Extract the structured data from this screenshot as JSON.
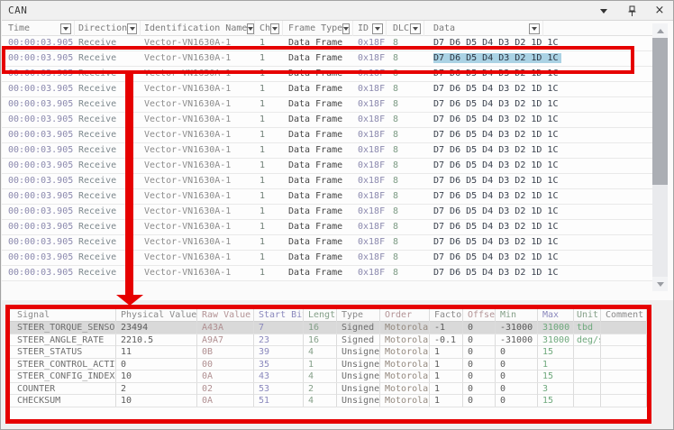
{
  "window": {
    "title": "CAN",
    "controls": [
      {
        "name": "menu-down",
        "glyph": "triangle-down"
      },
      {
        "name": "pin",
        "glyph": "pushpin"
      },
      {
        "name": "close",
        "glyph": "x"
      }
    ]
  },
  "message_table": {
    "columns": [
      {
        "label": "Time",
        "filter": true
      },
      {
        "label": "Direction",
        "filter": true
      },
      {
        "label": "Identification Name",
        "filter": true
      },
      {
        "label": "Ch",
        "filter": true
      },
      {
        "label": "Frame Type",
        "filter": true
      },
      {
        "label": "ID",
        "filter": true
      },
      {
        "label": "DLC",
        "filter": true
      },
      {
        "label": "Data",
        "filter": true
      }
    ],
    "column_colors": [
      "#8b89ae",
      "#7d888d",
      "#8c8c8c",
      "#6f7f76",
      "#464646",
      "#8b89ae",
      "#7d9b84",
      "#3a414d"
    ],
    "highlighted_row_index": 1,
    "highlight_color": "#aad2e4",
    "rows": [
      [
        "00:00:03.905",
        "Receive",
        "Vector-VN1630A-1",
        "1",
        "Data Frame",
        "0x18F",
        "8",
        "D7 D6 D5 D4 D3 D2 1D 1C"
      ],
      [
        "00:00:03.905",
        "Receive",
        "Vector-VN1630A-1",
        "1",
        "Data Frame",
        "0x18F",
        "8",
        "D7 D6 D5 D4 D3 D2 1D 1C"
      ],
      [
        "00:00:03.905",
        "Receive",
        "Vector-VN1630A-1",
        "1",
        "Data Frame",
        "0x18F",
        "8",
        "D7 D6 D5 D4 D3 D2 1D 1C"
      ],
      [
        "00:00:03.905",
        "Receive",
        "Vector-VN1630A-1",
        "1",
        "Data Frame",
        "0x18F",
        "8",
        "D7 D6 D5 D4 D3 D2 1D 1C"
      ],
      [
        "00:00:03.905",
        "Receive",
        "Vector-VN1630A-1",
        "1",
        "Data Frame",
        "0x18F",
        "8",
        "D7 D6 D5 D4 D3 D2 1D 1C"
      ],
      [
        "00:00:03.905",
        "Receive",
        "Vector-VN1630A-1",
        "1",
        "Data Frame",
        "0x18F",
        "8",
        "D7 D6 D5 D4 D3 D2 1D 1C"
      ],
      [
        "00:00:03.905",
        "Receive",
        "Vector-VN1630A-1",
        "1",
        "Data Frame",
        "0x18F",
        "8",
        "D7 D6 D5 D4 D3 D2 1D 1C"
      ],
      [
        "00:00:03.905",
        "Receive",
        "Vector-VN1630A-1",
        "1",
        "Data Frame",
        "0x18F",
        "8",
        "D7 D6 D5 D4 D3 D2 1D 1C"
      ],
      [
        "00:00:03.905",
        "Receive",
        "Vector-VN1630A-1",
        "1",
        "Data Frame",
        "0x18F",
        "8",
        "D7 D6 D5 D4 D3 D2 1D 1C"
      ],
      [
        "00:00:03.905",
        "Receive",
        "Vector-VN1630A-1",
        "1",
        "Data Frame",
        "0x18F",
        "8",
        "D7 D6 D5 D4 D3 D2 1D 1C"
      ],
      [
        "00:00:03.905",
        "Receive",
        "Vector-VN1630A-1",
        "1",
        "Data Frame",
        "0x18F",
        "8",
        "D7 D6 D5 D4 D3 D2 1D 1C"
      ],
      [
        "00:00:03.905",
        "Receive",
        "Vector-VN1630A-1",
        "1",
        "Data Frame",
        "0x18F",
        "8",
        "D7 D6 D5 D4 D3 D2 1D 1C"
      ],
      [
        "00:00:03.905",
        "Receive",
        "Vector-VN1630A-1",
        "1",
        "Data Frame",
        "0x18F",
        "8",
        "D7 D6 D5 D4 D3 D2 1D 1C"
      ],
      [
        "00:00:03.905",
        "Receive",
        "Vector-VN1630A-1",
        "1",
        "Data Frame",
        "0x18F",
        "8",
        "D7 D6 D5 D4 D3 D2 1D 1C"
      ],
      [
        "00:00:03.905",
        "Receive",
        "Vector-VN1630A-1",
        "1",
        "Data Frame",
        "0x18F",
        "8",
        "D7 D6 D5 D4 D3 D2 1D 1C"
      ],
      [
        "00:00:03.905",
        "Receive",
        "Vector-VN1630A-1",
        "1",
        "Data Frame",
        "0x18F",
        "8",
        "D7 D6 D5 D4 D3 D2 1D 1C"
      ]
    ]
  },
  "signal_table": {
    "columns": [
      "Signal",
      "Physical Value",
      "Raw Value",
      "Start Bit",
      "Length",
      "Type",
      "Order",
      "Factor",
      "Offset",
      "Min",
      "Max",
      "Unit",
      "Comment"
    ],
    "header_colors": [
      "#8a8a8a",
      "#8a8a8a",
      "#b39496",
      "#8b89bd",
      "#85a089",
      "#8a8a8a",
      "#b39496",
      "#8a8a8a",
      "#b39496",
      "#85a089",
      "#8b89bd",
      "#85a089",
      "#8a8a8a"
    ],
    "column_colors": [
      "#6e6e6e",
      "#5a5a5a",
      "#b08f91",
      "#8b89bd",
      "#85a089",
      "#6e6e6e",
      "#94897f",
      "#5a5a5a",
      "#5a5a5a",
      "#5a5a5a",
      "#6fa97d",
      "#6fa97d",
      "#8a8a8a"
    ],
    "selected_row_index": 0,
    "rows": [
      [
        "STEER_TORQUE_SENSOR",
        "23494",
        "A43A",
        "7",
        "16",
        "Signed",
        "Motorola",
        "-1",
        "0",
        "-31000",
        "31000",
        "tbd",
        ""
      ],
      [
        "STEER_ANGLE_RATE",
        "2210.5",
        "A9A7",
        "23",
        "16",
        "Signed",
        "Motorola",
        "-0.1",
        "0",
        "-31000",
        "31000",
        "deg/s",
        ""
      ],
      [
        "STEER_STATUS",
        "11",
        "0B",
        "39",
        "4",
        "Unsigned",
        "Motorola",
        "1",
        "0",
        "0",
        "15",
        "",
        ""
      ],
      [
        "STEER_CONTROL_ACTIVE",
        "0",
        "00",
        "35",
        "1",
        "Unsigned",
        "Motorola",
        "1",
        "0",
        "0",
        "1",
        "",
        ""
      ],
      [
        "STEER_CONFIG_INDEX",
        "10",
        "0A",
        "43",
        "4",
        "Unsigned",
        "Motorola",
        "1",
        "0",
        "0",
        "15",
        "",
        ""
      ],
      [
        "COUNTER",
        "2",
        "02",
        "53",
        "2",
        "Unsigned",
        "Motorola",
        "1",
        "0",
        "0",
        "3",
        "",
        ""
      ],
      [
        "CHECKSUM",
        "10",
        "0A",
        "51",
        "4",
        "Unsigned",
        "Motorola",
        "1",
        "0",
        "0",
        "15",
        "",
        ""
      ]
    ]
  },
  "annotations": {
    "color": "#e60000"
  }
}
